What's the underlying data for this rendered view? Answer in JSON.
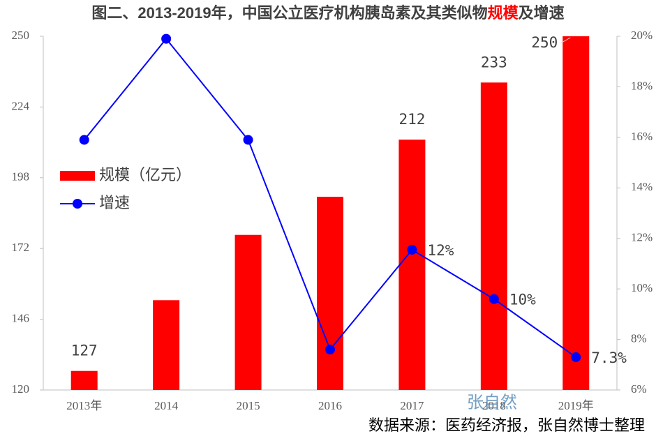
{
  "chart_data": {
    "type": "bar_line",
    "title_parts": [
      "图二、2013-2019年，中国公立医疗机构胰岛素及其类似物",
      "规模",
      "及增速"
    ],
    "title_color": "#404040",
    "title_highlight_color": "#ff0000",
    "categories": [
      "2013年",
      "2014",
      "2015",
      "2016",
      "2017",
      "2018",
      "2019年"
    ],
    "series": [
      {
        "name": "规模（亿元）",
        "kind": "bar",
        "color": "#ff0000",
        "axis": "y",
        "values": [
          127,
          153,
          177,
          191,
          212,
          233,
          250
        ],
        "value_labels": [
          "127",
          null,
          null,
          null,
          "212",
          "233",
          "250"
        ]
      },
      {
        "name": "增速",
        "kind": "line",
        "color": "#0000ff",
        "axis": "y2",
        "values": [
          15.9,
          19.9,
          15.9,
          7.6,
          11.55,
          9.6,
          7.3
        ],
        "value_labels": [
          null,
          null,
          null,
          null,
          "12%",
          "10%",
          "7.3%"
        ]
      }
    ],
    "ylim": [
      120,
      250
    ],
    "yticks": [
      120,
      146,
      172,
      198,
      224,
      250
    ],
    "y2lim": [
      6,
      20
    ],
    "y2ticks": [
      {
        "value": 6,
        "label": "6%"
      },
      {
        "value": 8,
        "label": "8%"
      },
      {
        "value": 10,
        "label": "10%"
      },
      {
        "value": 12,
        "label": "12%"
      },
      {
        "value": 14,
        "label": "14%"
      },
      {
        "value": 16,
        "label": "16%"
      },
      {
        "value": 18,
        "label": "18%"
      },
      {
        "value": 20,
        "label": "20%"
      }
    ],
    "legend": "center-left",
    "grid": false,
    "watermark": "张自然",
    "source": "数据来源：医药经济报，张自然博士整理"
  }
}
